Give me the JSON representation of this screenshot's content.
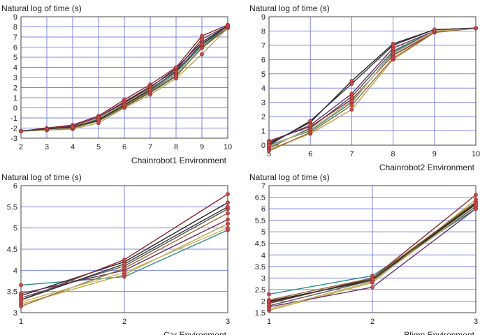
{
  "chart_data": [
    {
      "type": "line",
      "ylabel": "Natural log of time (s)",
      "xlabel": "Chainrobot1 Environment",
      "x": [
        2,
        3,
        4,
        5,
        6,
        7,
        8,
        9,
        10
      ],
      "xlim": [
        2,
        10
      ],
      "ylim": [
        -3,
        9
      ],
      "yticks": [
        -3,
        -2,
        -1,
        0,
        1,
        2,
        3,
        4,
        5,
        6,
        7,
        8,
        9
      ],
      "grid": true,
      "series": [
        {
          "color": "#222222",
          "values": [
            -2.3,
            -2.1,
            -1.8,
            -1.0,
            0.5,
            2.0,
            3.9,
            6.5,
            8.1
          ]
        },
        {
          "color": "#555555",
          "values": [
            -2.3,
            -2.2,
            -2.0,
            -1.3,
            0.1,
            1.5,
            3.1,
            6.0,
            8.0
          ]
        },
        {
          "color": "#8a2a2a",
          "values": [
            -2.3,
            -2.0,
            -1.7,
            -0.8,
            0.8,
            2.3,
            4.0,
            7.1,
            8.2
          ]
        },
        {
          "color": "#b5a642",
          "values": [
            -2.3,
            -2.2,
            -2.1,
            -1.5,
            0.0,
            1.3,
            2.9,
            5.3,
            7.9
          ]
        },
        {
          "color": "#2d8b8b",
          "values": [
            -2.3,
            -2.1,
            -1.9,
            -1.1,
            0.3,
            1.7,
            3.4,
            6.2,
            8.0
          ]
        },
        {
          "color": "#6b2f6b",
          "values": [
            -2.3,
            -2.1,
            -1.8,
            -0.9,
            0.6,
            2.1,
            3.7,
            6.8,
            8.1
          ]
        },
        {
          "color": "#9a6a2f",
          "values": [
            -2.3,
            -2.2,
            -2.0,
            -1.2,
            0.2,
            1.6,
            3.2,
            5.9,
            7.9
          ]
        },
        {
          "color": "#c9b36a",
          "values": [
            -2.3,
            -2.2,
            -1.9,
            -1.0,
            0.4,
            1.9,
            3.5,
            6.4,
            8.0
          ]
        },
        {
          "color": "#333333",
          "values": [
            -2.3,
            -2.1,
            -1.9,
            -1.2,
            0.3,
            1.8,
            3.6,
            6.3,
            8.1
          ]
        }
      ]
    },
    {
      "type": "line",
      "ylabel": "Natural log of time (s)",
      "xlabel": "Chainrobot2 Environment",
      "x": [
        5,
        6,
        7,
        8,
        9,
        10
      ],
      "xlim": [
        5,
        10
      ],
      "ylim": [
        0,
        9
      ],
      "yticks": [
        0,
        1,
        2,
        3,
        4,
        5,
        6,
        7,
        8,
        9
      ],
      "grid": true,
      "series": [
        {
          "color": "#222222",
          "values": [
            0.1,
            1.6,
            4.5,
            7.1,
            8.1,
            8.2
          ]
        },
        {
          "color": "#555555",
          "values": [
            -0.2,
            1.2,
            3.4,
            6.6,
            8.0,
            8.2
          ]
        },
        {
          "color": "#8a2a2a",
          "values": [
            0.3,
            1.3,
            3.2,
            6.3,
            7.9,
            8.2
          ]
        },
        {
          "color": "#b5a642",
          "values": [
            -0.3,
            0.8,
            2.5,
            6.0,
            7.9,
            8.2
          ]
        },
        {
          "color": "#2d8b8b",
          "values": [
            0.0,
            1.0,
            3.0,
            6.5,
            8.0,
            8.2
          ]
        },
        {
          "color": "#6b2f6b",
          "values": [
            0.2,
            1.4,
            3.6,
            6.8,
            8.0,
            8.2
          ]
        },
        {
          "color": "#9a6a2f",
          "values": [
            -0.4,
            0.9,
            2.8,
            6.1,
            7.9,
            8.2
          ]
        },
        {
          "color": "#c9b36a",
          "values": [
            -0.1,
            1.1,
            3.1,
            6.4,
            8.0,
            8.2
          ]
        },
        {
          "color": "#333333",
          "values": [
            0.0,
            1.7,
            4.3,
            7.0,
            8.1,
            8.2
          ]
        }
      ]
    },
    {
      "type": "line",
      "ylabel": "Natural log of time (s)",
      "xlabel": "Car Environment",
      "x": [
        1,
        2,
        3
      ],
      "xlim": [
        1,
        3
      ],
      "ylim": [
        3,
        6
      ],
      "yticks": [
        3,
        3.5,
        4,
        4.5,
        5,
        5.5,
        6
      ],
      "yticklabels": [
        "3",
        "3.5",
        "4",
        "4.5",
        "5",
        "5.5",
        "6"
      ],
      "grid": true,
      "series": [
        {
          "color": "#2d8b8b",
          "values": [
            3.65,
            3.85,
            4.95
          ]
        },
        {
          "color": "#222222",
          "values": [
            3.4,
            4.2,
            5.6
          ]
        },
        {
          "color": "#8a2a2a",
          "values": [
            3.3,
            4.25,
            5.8
          ]
        },
        {
          "color": "#b5a642",
          "values": [
            3.2,
            3.9,
            5.1
          ]
        },
        {
          "color": "#555555",
          "values": [
            3.35,
            4.1,
            5.45
          ]
        },
        {
          "color": "#6b2f6b",
          "values": [
            3.45,
            4.0,
            5.2
          ]
        },
        {
          "color": "#9a6a2f",
          "values": [
            3.15,
            4.05,
            5.35
          ]
        },
        {
          "color": "#c9b36a",
          "values": [
            3.25,
            3.95,
            5.0
          ]
        },
        {
          "color": "#333333",
          "values": [
            3.3,
            4.15,
            5.5
          ]
        }
      ]
    },
    {
      "type": "line",
      "ylabel": "Natural log of time (s)",
      "xlabel": "Blimp Environment",
      "x": [
        1,
        2,
        3
      ],
      "xlim": [
        1,
        3
      ],
      "ylim": [
        1.5,
        7
      ],
      "yticks": [
        1.5,
        2,
        2.5,
        3,
        3.5,
        4,
        4.5,
        5,
        5.5,
        6,
        6.5,
        7
      ],
      "yticklabels": [
        "1.5",
        "2",
        "2.5",
        "3",
        "3.5",
        "4",
        "4.5",
        "5",
        "5.5",
        "6",
        "6.5",
        "7"
      ],
      "grid": true,
      "series": [
        {
          "color": "#2d8b8b",
          "values": [
            2.3,
            3.1,
            6.0
          ]
        },
        {
          "color": "#222222",
          "values": [
            2.0,
            2.9,
            6.2
          ]
        },
        {
          "color": "#8a2a2a",
          "values": [
            1.9,
            3.0,
            6.6
          ]
        },
        {
          "color": "#b5a642",
          "values": [
            1.6,
            2.8,
            6.4
          ]
        },
        {
          "color": "#555555",
          "values": [
            1.8,
            2.9,
            6.1
          ]
        },
        {
          "color": "#6b2f6b",
          "values": [
            1.75,
            2.6,
            6.0
          ]
        },
        {
          "color": "#9a6a2f",
          "values": [
            2.05,
            3.0,
            6.3
          ]
        },
        {
          "color": "#c9b36a",
          "values": [
            1.65,
            2.85,
            6.15
          ]
        },
        {
          "color": "#333333",
          "values": [
            1.95,
            2.95,
            6.25
          ]
        }
      ]
    }
  ]
}
